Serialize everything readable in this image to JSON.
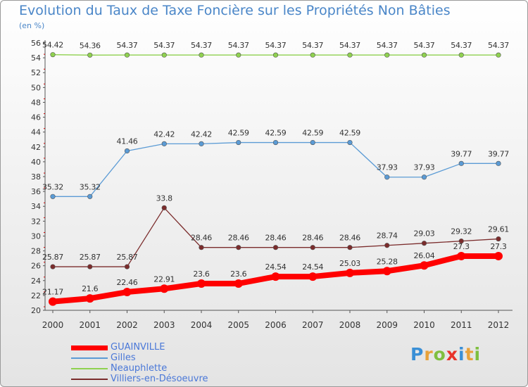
{
  "title": "Evolution du Taux de Taxe Foncière sur les Propriétés Non Bâties",
  "subtitle": "(en %)",
  "logo": "Proxiti",
  "chart_data": {
    "type": "line",
    "title": "Evolution du Taux de Taxe Foncière sur les Propriétés Non Bâties",
    "ylabel": "(en %)",
    "categories": [
      "2000",
      "2001",
      "2002",
      "2003",
      "2004",
      "2005",
      "2006",
      "2007",
      "2008",
      "2009",
      "2010",
      "2011",
      "2012"
    ],
    "ylim": [
      20,
      56
    ],
    "y_ticks": [
      20,
      22,
      24,
      26,
      28,
      30,
      32,
      34,
      36,
      38,
      40,
      42,
      44,
      46,
      48,
      50,
      52,
      54,
      56
    ],
    "grid": false,
    "legend_position": "bottom-left",
    "series": [
      {
        "name": "GUAINVILLE",
        "color": "#ff0000",
        "values": [
          21.17,
          21.6,
          22.46,
          22.91,
          23.6,
          23.6,
          24.54,
          24.54,
          25.03,
          25.28,
          26.04,
          27.3,
          27.3
        ],
        "labels": [
          "21.17",
          "21.6",
          "22.46",
          "22.91",
          "23.6",
          "23.6",
          "24.54",
          "24.54",
          "25.03",
          "25.28",
          "26.04",
          "27.3",
          "27.3"
        ]
      },
      {
        "name": "Gilles",
        "color": "#5b9bd5",
        "values": [
          35.32,
          35.32,
          41.46,
          42.42,
          42.42,
          42.59,
          42.59,
          42.59,
          42.59,
          37.93,
          37.93,
          39.77,
          39.77
        ],
        "labels": [
          "35.32",
          "35.32",
          "41.46",
          "42.42",
          "42.42",
          "42.59",
          "42.59",
          "42.59",
          "42.59",
          "37.93",
          "37.93",
          "39.77",
          "39.77"
        ]
      },
      {
        "name": "Neauphlette",
        "color": "#8fd14f",
        "values": [
          54.42,
          54.36,
          54.37,
          54.37,
          54.37,
          54.37,
          54.37,
          54.37,
          54.37,
          54.37,
          54.37,
          54.37,
          54.37
        ],
        "labels": [
          "54.42",
          "54.36",
          "54.37",
          "54.37",
          "54.37",
          "54.37",
          "54.37",
          "54.37",
          "54.37",
          "54.37",
          "54.37",
          "54.37",
          "54.37"
        ]
      },
      {
        "name": "Villiers-en-Désoeuvre",
        "color": "#7b2c2c",
        "values": [
          25.87,
          25.87,
          25.87,
          33.8,
          28.46,
          28.46,
          28.46,
          28.46,
          28.46,
          28.74,
          29.03,
          29.32,
          29.61
        ],
        "labels": [
          "25.87",
          "25.87",
          "25.87",
          "33.8",
          "28.46",
          "28.46",
          "28.46",
          "28.46",
          "28.46",
          "28.74",
          "29.03",
          "29.32",
          "29.61"
        ]
      }
    ]
  }
}
